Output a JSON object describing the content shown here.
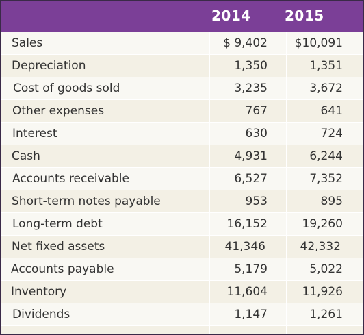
{
  "header": {
    "year1": "2014",
    "year2": "2015"
  },
  "rows": [
    {
      "label": "Sales",
      "v2014": "$ 9,402",
      "v2015": "$10,091"
    },
    {
      "label": "Depreciation",
      "v2014": "1,350",
      "v2015": "1,351"
    },
    {
      "label": "Cost of goods sold",
      "v2014": "3,235",
      "v2015": "3,672"
    },
    {
      "label": "Other expenses",
      "v2014": "767",
      "v2015": "641"
    },
    {
      "label": "Interest",
      "v2014": "630",
      "v2015": "724"
    },
    {
      "label": "Cash",
      "v2014": "4,931",
      "v2015": "6,244"
    },
    {
      "label": "Accounts receivable",
      "v2014": "6,527",
      "v2015": "7,352"
    },
    {
      "label": "Short-term notes payable",
      "v2014": "953",
      "v2015": "895"
    },
    {
      "label": "Long-term debt",
      "v2014": "16,152",
      "v2015": "19,260"
    },
    {
      "label": "Net fixed assets",
      "v2014": "41,346",
      "v2015": "42,332"
    },
    {
      "label": "Accounts payable",
      "v2014": "5,179",
      "v2015": "5,022"
    },
    {
      "label": "Inventory",
      "v2014": "11,604",
      "v2015": "11,926"
    },
    {
      "label": "Dividends",
      "v2014": "1,147",
      "v2015": "1,261"
    }
  ],
  "colors": {
    "header_bg": "#7b3f97",
    "row_light": "#f9f8f3",
    "row_dark": "#f3f0e5",
    "text": "#333333"
  }
}
